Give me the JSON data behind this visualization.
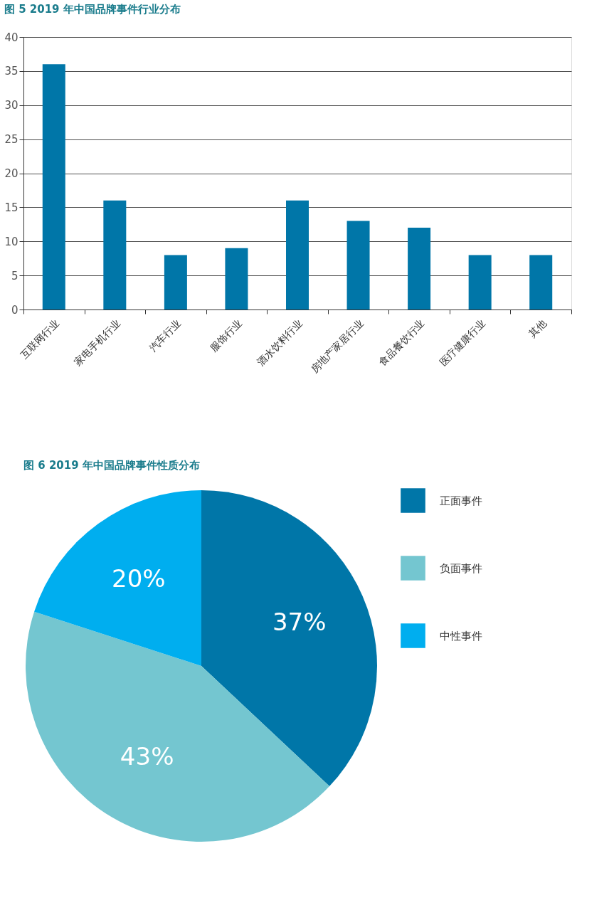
{
  "chart_data": [
    {
      "type": "bar",
      "title": "图 5  2019 年中国品牌事件行业分布",
      "categories": [
        "互联网行业",
        "家电手机行业",
        "汽车行业",
        "服饰行业",
        "酒水饮料行业",
        "房地产家居行业",
        "食品餐饮行业",
        "医疗健康行业",
        "其他"
      ],
      "values": [
        36,
        16,
        8,
        9,
        16,
        13,
        12,
        8,
        8
      ],
      "color": "#0076a8",
      "ylim": [
        0,
        40
      ],
      "yticks": [
        0,
        5,
        10,
        15,
        20,
        25,
        30,
        35,
        40
      ],
      "grid": "y"
    },
    {
      "type": "pie",
      "title": "图 6  2019 年中国品牌事件性质分布",
      "categories": [
        "正面事件",
        "负面事件",
        "中性事件"
      ],
      "values": [
        37,
        43,
        20
      ],
      "colors": [
        "#0076a8",
        "#74c6d0",
        "#00aeef"
      ],
      "value_labels": [
        "37%",
        "43%",
        "20%"
      ],
      "legend": "right"
    }
  ]
}
